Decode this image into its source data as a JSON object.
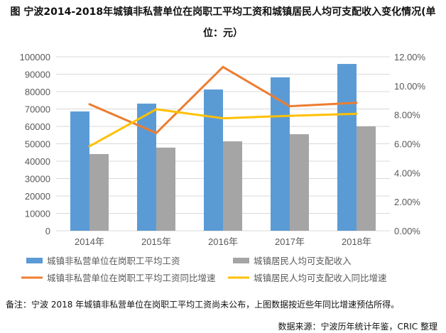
{
  "title_line1": "图 宁波2014-2018年城镇非私营单位在岗职工平均工资和城镇居民人均可支配收入变化情况(单",
  "title_line2": "位：元）",
  "chart_data": {
    "type": "bar",
    "title": "图 宁波2014-2018年城镇非私营单位在岗职工平均工资和城镇居民人均可支配收入变化情况(单位：元）",
    "categories": [
      "2014年",
      "2015年",
      "2016年",
      "2017年",
      "2018年"
    ],
    "y_left": {
      "range": [
        0,
        100000
      ],
      "ticks": [
        "0",
        "10000",
        "20000",
        "30000",
        "40000",
        "50000",
        "60000",
        "70000",
        "80000",
        "90000",
        "100000"
      ]
    },
    "y_right": {
      "range": [
        0,
        12
      ],
      "ticks": [
        "0.00%",
        "2.00%",
        "4.00%",
        "6.00%",
        "8.00%",
        "10.00%",
        "12.00%"
      ]
    },
    "grid": true,
    "legend_placement": "bottom",
    "series": [
      {
        "name": "城镇非私营单位在岗职工平均工资",
        "type": "bar",
        "axis": "left",
        "color": "#5b9bd5",
        "values": [
          68600,
          73100,
          81200,
          88200,
          95900
        ]
      },
      {
        "name": "城镇居民人均可支配收入",
        "type": "bar",
        "axis": "left",
        "color": "#a5a5a5",
        "values": [
          44100,
          47800,
          51400,
          55500,
          60000
        ]
      },
      {
        "name": "城镇非私营单位在岗职工平均工资同比增速",
        "type": "line",
        "axis": "right",
        "color": "#ed7d31",
        "values": [
          8.73,
          6.74,
          11.3,
          8.59,
          8.83
        ]
      },
      {
        "name": "城镇居民人均可支配收入同比增速",
        "type": "line",
        "axis": "right",
        "color": "#ffc000",
        "values": [
          5.83,
          8.38,
          7.76,
          7.93,
          8.07
        ]
      }
    ]
  },
  "footnote": "备注：宁波 2018 年城镇非私营单位在岗职工平均工资尚未公布，上图数据按近些年同比增速预估所得。",
  "source": "数据来源：宁波历年统计年鉴，CRIC 整理"
}
